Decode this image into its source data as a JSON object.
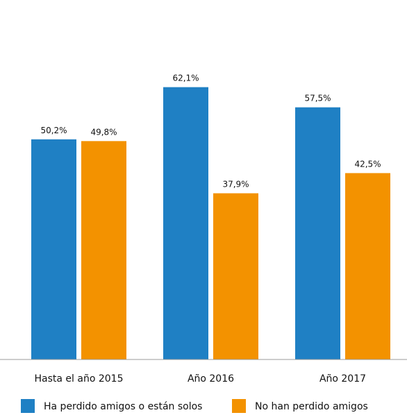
{
  "chart_data": {
    "type": "bar",
    "categories": [
      "Hasta el año 2015",
      "Año 2016",
      "Año 2017"
    ],
    "series": [
      {
        "name": "Ha perdido amigos o están solos",
        "values": [
          50.2,
          62.1,
          57.5
        ],
        "labels": [
          "50,2%",
          "62,1%",
          "57,5%"
        ],
        "color": "#1f80c4"
      },
      {
        "name": "No han perdido amigos",
        "values": [
          49.8,
          37.9,
          42.5
        ],
        "labels": [
          "49,8%",
          "37,9%",
          "42,5%"
        ],
        "color": "#f39200"
      }
    ],
    "ylim": [
      0,
      79.6
    ],
    "grid": false,
    "legend_position": "bottom-left"
  }
}
